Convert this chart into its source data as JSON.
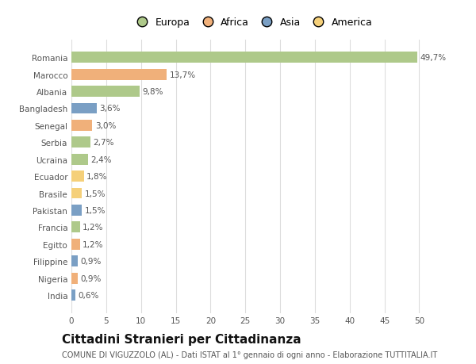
{
  "countries": [
    "Romania",
    "Marocco",
    "Albania",
    "Bangladesh",
    "Senegal",
    "Serbia",
    "Ucraina",
    "Ecuador",
    "Brasile",
    "Pakistan",
    "Francia",
    "Egitto",
    "Filippine",
    "Nigeria",
    "India"
  ],
  "values": [
    49.7,
    13.7,
    9.8,
    3.6,
    3.0,
    2.7,
    2.4,
    1.8,
    1.5,
    1.5,
    1.2,
    1.2,
    0.9,
    0.9,
    0.6
  ],
  "labels": [
    "49,7%",
    "13,7%",
    "9,8%",
    "3,6%",
    "3,0%",
    "2,7%",
    "2,4%",
    "1,8%",
    "1,5%",
    "1,5%",
    "1,2%",
    "1,2%",
    "0,9%",
    "0,9%",
    "0,6%"
  ],
  "colors": [
    "#aec98a",
    "#f0b07a",
    "#aec98a",
    "#7a9fc4",
    "#f0b07a",
    "#aec98a",
    "#aec98a",
    "#f5d07a",
    "#f5d07a",
    "#7a9fc4",
    "#aec98a",
    "#f0b07a",
    "#7a9fc4",
    "#f0b07a",
    "#7a9fc4"
  ],
  "legend_labels": [
    "Europa",
    "Africa",
    "Asia",
    "America"
  ],
  "legend_colors": [
    "#aec98a",
    "#f0b07a",
    "#7a9fc4",
    "#f5d07a"
  ],
  "title": "Cittadini Stranieri per Cittadinanza",
  "subtitle": "COMUNE DI VIGUZZOLO (AL) - Dati ISTAT al 1° gennaio di ogni anno - Elaborazione TUTTITALIA.IT",
  "xlim": [
    0,
    52
  ],
  "xticks": [
    0,
    5,
    10,
    15,
    20,
    25,
    30,
    35,
    40,
    45,
    50
  ],
  "background_color": "#ffffff",
  "grid_color": "#dddddd",
  "bar_height": 0.65,
  "label_fontsize": 7.5,
  "title_fontsize": 11,
  "subtitle_fontsize": 7,
  "tick_fontsize": 7.5,
  "legend_fontsize": 9,
  "text_color": "#555555",
  "title_color": "#111111"
}
